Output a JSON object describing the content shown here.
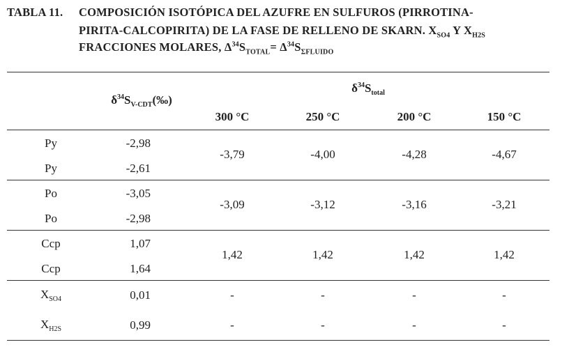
{
  "caption": {
    "label": "TABLA 11.",
    "line1": [
      "COMPOSICIÓN ISOTÓPICA DEL AZUFRE EN SULFUROS (PIRROTINA-"
    ],
    "line2": [
      "PIRITA-CALCOPIRITA) DE LA FASE DE RELLENO DE SKARN. X",
      "SO4",
      " Y X",
      "H2S"
    ],
    "line3": [
      "FRACCIONES MOLARES, Δ",
      "34",
      "S",
      "TOTAL",
      "= Δ",
      "34",
      "S",
      "ΣFLUIDO"
    ]
  },
  "table": {
    "header": {
      "measured": [
        "δ",
        "34",
        "S",
        "V-CDT",
        "(‰)"
      ],
      "group": [
        "δ",
        "34",
        "S",
        "total"
      ],
      "temperatures": [
        "300 °C",
        "250 °C",
        "200 °C",
        "150 °C"
      ]
    },
    "groups": [
      {
        "rows": [
          {
            "label": [
              "Py"
            ],
            "value": "-2,98"
          },
          {
            "label": [
              "Py"
            ],
            "value": "-2,61"
          }
        ],
        "model": [
          "-3,79",
          "-4,00",
          "-4,28",
          "-4,67"
        ]
      },
      {
        "rows": [
          {
            "label": [
              "Po"
            ],
            "value": "-3,05"
          },
          {
            "label": [
              "Po"
            ],
            "value": "-2,98"
          }
        ],
        "model": [
          "-3,09",
          "-3,12",
          "-3,16",
          "-3,21"
        ]
      },
      {
        "rows": [
          {
            "label": [
              "Ccp"
            ],
            "value": "1,07"
          },
          {
            "label": [
              "Ccp"
            ],
            "value": "1,64"
          }
        ],
        "model": [
          "1,42",
          "1,42",
          "1,42",
          "1,42"
        ]
      },
      {
        "rows": [
          {
            "label": [
              "X",
              "SO4"
            ],
            "value": "0,01",
            "model": [
              "-",
              "-",
              "-",
              "-"
            ]
          },
          {
            "label": [
              "X",
              "H2S"
            ],
            "value": "0,99",
            "model": [
              "-",
              "-",
              "-",
              "-"
            ]
          }
        ]
      }
    ]
  }
}
